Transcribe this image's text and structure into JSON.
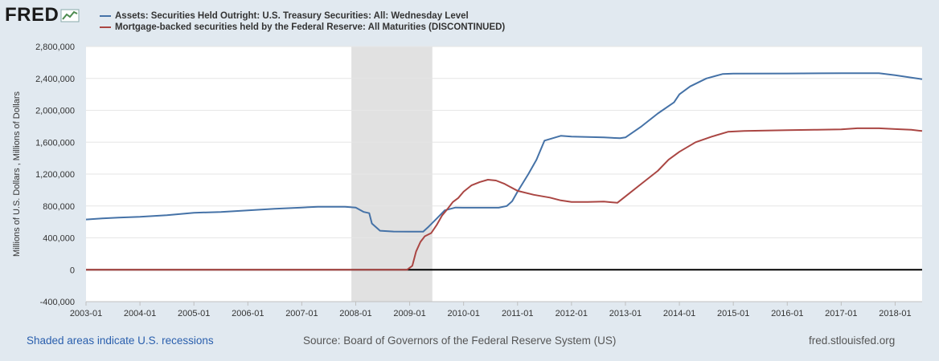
{
  "brand": {
    "name": "FRED",
    "icon": "fred-chart-icon"
  },
  "legend": [
    {
      "label": "Assets: Securities Held Outright: U.S. Treasury Securities: All: Wednesday Level",
      "color": "#4572a7"
    },
    {
      "label": "Mortgage-backed securities held by the Federal Reserve: All Maturities (DISCONTINUED)",
      "color": "#aa4643"
    }
  ],
  "footer": {
    "recessions": "Shaded areas indicate U.S. recessions",
    "source": "Source: Board of Governors of the Federal Reserve System (US)",
    "site": "fred.stlouisfed.org"
  },
  "chart_data": {
    "type": "line",
    "title": "",
    "xlabel": "",
    "ylabel": "Millions of U.S. Dollars , Millions of Dollars",
    "xlim": [
      2003.0,
      2018.5
    ],
    "ylim": [
      -400000,
      2800000
    ],
    "x_tick_labels": [
      "2003-01",
      "2004-01",
      "2005-01",
      "2006-01",
      "2007-01",
      "2008-01",
      "2009-01",
      "2010-01",
      "2011-01",
      "2012-01",
      "2013-01",
      "2014-01",
      "2015-01",
      "2016-01",
      "2017-01",
      "2018-01"
    ],
    "x_tick_values": [
      2003,
      2004,
      2005,
      2006,
      2007,
      2008,
      2009,
      2010,
      2011,
      2012,
      2013,
      2014,
      2015,
      2016,
      2017,
      2018
    ],
    "y_tick_values": [
      -400000,
      0,
      400000,
      800000,
      1200000,
      1600000,
      2000000,
      2400000,
      2800000
    ],
    "y_tick_labels": [
      "-400,000",
      "0",
      "400,000",
      "800,000",
      "1,200,000",
      "1,600,000",
      "2,000,000",
      "2,400,000",
      "2,800,000"
    ],
    "recessions": [
      {
        "start": 2007.92,
        "end": 2009.42
      }
    ],
    "zero_line": 0,
    "series": [
      {
        "name": "Assets: Securities Held Outright: U.S. Treasury Securities: All: Wednesday Level",
        "color": "#4572a7",
        "points": [
          [
            2003.0,
            630000
          ],
          [
            2003.3,
            645000
          ],
          [
            2003.6,
            655000
          ],
          [
            2004.0,
            665000
          ],
          [
            2004.5,
            685000
          ],
          [
            2005.0,
            715000
          ],
          [
            2005.5,
            725000
          ],
          [
            2006.0,
            745000
          ],
          [
            2006.5,
            765000
          ],
          [
            2007.0,
            780000
          ],
          [
            2007.3,
            790000
          ],
          [
            2007.8,
            790000
          ],
          [
            2008.0,
            780000
          ],
          [
            2008.15,
            725000
          ],
          [
            2008.25,
            710000
          ],
          [
            2008.3,
            580000
          ],
          [
            2008.45,
            490000
          ],
          [
            2008.7,
            480000
          ],
          [
            2009.0,
            477000
          ],
          [
            2009.25,
            478000
          ],
          [
            2009.35,
            540000
          ],
          [
            2009.5,
            640000
          ],
          [
            2009.65,
            745000
          ],
          [
            2009.85,
            780000
          ],
          [
            2010.0,
            778000
          ],
          [
            2010.5,
            778000
          ],
          [
            2010.65,
            778000
          ],
          [
            2010.8,
            800000
          ],
          [
            2010.9,
            860000
          ],
          [
            2011.0,
            980000
          ],
          [
            2011.2,
            1200000
          ],
          [
            2011.35,
            1380000
          ],
          [
            2011.5,
            1620000
          ],
          [
            2011.65,
            1650000
          ],
          [
            2011.8,
            1680000
          ],
          [
            2012.0,
            1670000
          ],
          [
            2012.3,
            1665000
          ],
          [
            2012.6,
            1660000
          ],
          [
            2012.9,
            1650000
          ],
          [
            2013.0,
            1660000
          ],
          [
            2013.3,
            1800000
          ],
          [
            2013.6,
            1960000
          ],
          [
            2013.9,
            2100000
          ],
          [
            2014.0,
            2200000
          ],
          [
            2014.2,
            2300000
          ],
          [
            2014.5,
            2400000
          ],
          [
            2014.8,
            2455000
          ],
          [
            2015.0,
            2460000
          ],
          [
            2016.0,
            2462000
          ],
          [
            2017.0,
            2465000
          ],
          [
            2017.7,
            2465000
          ],
          [
            2018.0,
            2440000
          ],
          [
            2018.3,
            2410000
          ],
          [
            2018.5,
            2390000
          ]
        ]
      },
      {
        "name": "Mortgage-backed securities held by the Federal Reserve: All Maturities (DISCONTINUED)",
        "color": "#aa4643",
        "points": [
          [
            2003.0,
            0
          ],
          [
            2008.95,
            0
          ],
          [
            2009.05,
            50000
          ],
          [
            2009.12,
            230000
          ],
          [
            2009.2,
            350000
          ],
          [
            2009.28,
            420000
          ],
          [
            2009.4,
            460000
          ],
          [
            2009.5,
            560000
          ],
          [
            2009.6,
            680000
          ],
          [
            2009.7,
            760000
          ],
          [
            2009.8,
            850000
          ],
          [
            2009.9,
            900000
          ],
          [
            2010.0,
            980000
          ],
          [
            2010.15,
            1060000
          ],
          [
            2010.3,
            1100000
          ],
          [
            2010.45,
            1130000
          ],
          [
            2010.6,
            1120000
          ],
          [
            2010.75,
            1080000
          ],
          [
            2011.0,
            990000
          ],
          [
            2011.3,
            940000
          ],
          [
            2011.6,
            905000
          ],
          [
            2011.8,
            870000
          ],
          [
            2012.0,
            850000
          ],
          [
            2012.3,
            850000
          ],
          [
            2012.6,
            855000
          ],
          [
            2012.85,
            840000
          ],
          [
            2013.0,
            920000
          ],
          [
            2013.3,
            1080000
          ],
          [
            2013.6,
            1240000
          ],
          [
            2013.8,
            1380000
          ],
          [
            2014.0,
            1480000
          ],
          [
            2014.3,
            1600000
          ],
          [
            2014.6,
            1670000
          ],
          [
            2014.9,
            1730000
          ],
          [
            2015.2,
            1740000
          ],
          [
            2015.6,
            1745000
          ],
          [
            2016.0,
            1750000
          ],
          [
            2016.5,
            1755000
          ],
          [
            2017.0,
            1760000
          ],
          [
            2017.3,
            1775000
          ],
          [
            2017.7,
            1775000
          ],
          [
            2018.0,
            1765000
          ],
          [
            2018.3,
            1755000
          ],
          [
            2018.5,
            1740000
          ]
        ]
      }
    ]
  }
}
